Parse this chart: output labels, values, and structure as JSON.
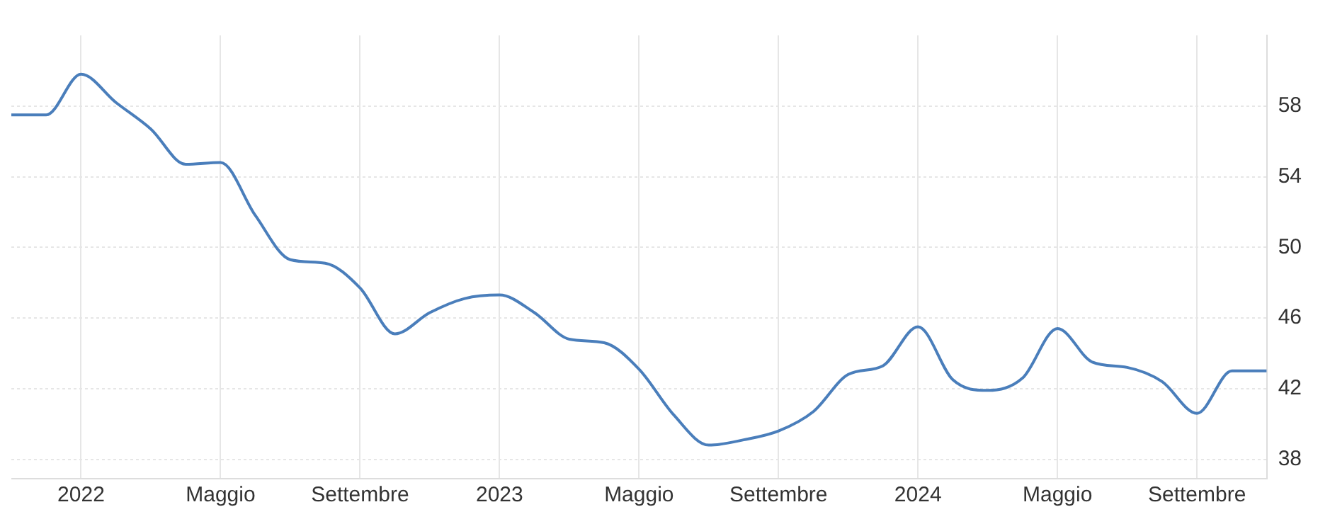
{
  "chart_data": {
    "type": "line",
    "x": [
      "2021-11",
      "2021-12",
      "2022-01",
      "2022-02",
      "2022-03",
      "2022-04",
      "2022-05",
      "2022-06",
      "2022-07",
      "2022-08",
      "2022-09",
      "2022-10",
      "2022-11",
      "2022-12",
      "2023-01",
      "2023-02",
      "2023-03",
      "2023-04",
      "2023-05",
      "2023-06",
      "2023-07",
      "2023-08",
      "2023-09",
      "2023-10",
      "2023-11",
      "2023-12",
      "2024-01",
      "2024-02",
      "2024-03",
      "2024-04",
      "2024-05",
      "2024-06",
      "2024-07",
      "2024-08",
      "2024-09",
      "2024-10",
      "2024-11"
    ],
    "series": [
      {
        "color": "#4a7ebb",
        "values": [
          57.5,
          57.5,
          59.8,
          58.2,
          56.7,
          54.7,
          54.8,
          51.8,
          49.3,
          49.1,
          47.7,
          45.1,
          46.3,
          47.1,
          47.3,
          46.3,
          44.8,
          44.6,
          43.1,
          40.5,
          38.8,
          39.1,
          39.6,
          40.7,
          42.8,
          43.3,
          45.5,
          42.5,
          41.9,
          42.6,
          45.4,
          43.5,
          43.2,
          42.4,
          40.6,
          43.0,
          43.0
        ]
      }
    ],
    "xlim": [
      "2021-11",
      "2024-11"
    ],
    "xticks": [
      {
        "value": "2022-01",
        "label": "2022"
      },
      {
        "value": "2022-05",
        "label": "Maggio"
      },
      {
        "value": "2022-09",
        "label": "Settembre"
      },
      {
        "value": "2023-01",
        "label": "2023"
      },
      {
        "value": "2023-05",
        "label": "Maggio"
      },
      {
        "value": "2023-09",
        "label": "Settembre"
      },
      {
        "value": "2024-01",
        "label": "2024"
      },
      {
        "value": "2024-05",
        "label": "Maggio"
      },
      {
        "value": "2024-09",
        "label": "Settembre"
      }
    ],
    "ylim": [
      36.9,
      62
    ],
    "yticks": [
      38,
      42,
      46,
      50,
      54,
      58
    ],
    "grid": true,
    "legend": false,
    "marker": "none",
    "line_style": "solid"
  }
}
